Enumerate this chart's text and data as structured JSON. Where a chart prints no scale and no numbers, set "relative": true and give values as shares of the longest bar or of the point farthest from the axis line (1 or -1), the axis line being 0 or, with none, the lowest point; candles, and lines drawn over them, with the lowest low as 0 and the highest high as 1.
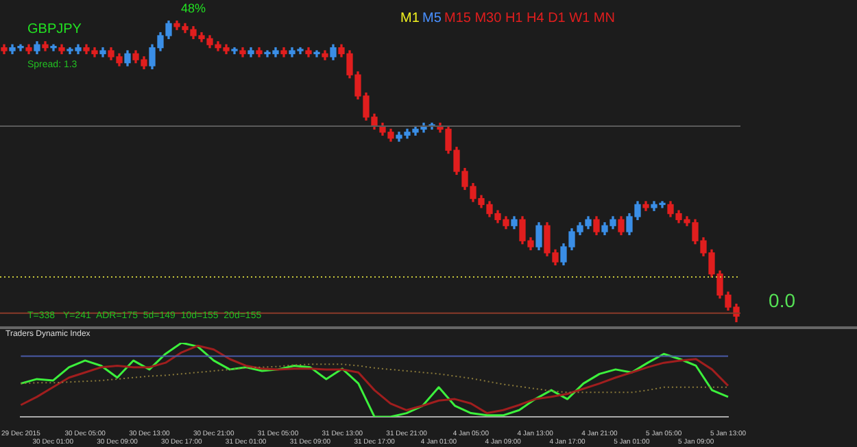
{
  "chart_data": [
    {
      "type": "candlestick",
      "relative": true,
      "tick_labels": false,
      "categories": [
        null,
        null,
        null,
        null,
        null,
        null,
        null,
        null,
        null,
        null,
        null,
        null,
        null,
        null,
        null,
        null,
        null,
        null,
        null,
        null,
        null,
        null,
        null,
        null,
        null,
        null,
        null,
        null,
        null,
        null,
        null,
        null,
        null,
        null,
        null,
        null,
        null,
        null,
        null,
        null,
        null,
        null,
        null,
        null,
        null,
        null,
        null,
        null,
        null,
        null,
        null,
        null,
        null,
        null,
        null,
        null,
        null,
        null,
        null,
        null,
        null,
        null,
        null,
        null,
        null,
        null,
        null,
        null,
        null,
        null,
        null,
        null,
        null,
        null,
        null,
        null,
        null,
        null,
        null,
        null,
        null,
        null,
        null,
        null,
        null,
        null,
        null,
        null,
        null,
        null
      ],
      "ohlc": [
        [
          0.91,
          0.92,
          0.89,
          0.9
        ],
        [
          0.9,
          0.92,
          0.89,
          0.91
        ],
        [
          0.91,
          0.92,
          0.9,
          0.91
        ],
        [
          0.91,
          0.92,
          0.89,
          0.9
        ],
        [
          0.9,
          0.93,
          0.89,
          0.92
        ],
        [
          0.92,
          0.93,
          0.9,
          0.91
        ],
        [
          0.91,
          0.92,
          0.9,
          0.91
        ],
        [
          0.91,
          0.92,
          0.89,
          0.9
        ],
        [
          0.9,
          0.91,
          0.89,
          0.9
        ],
        [
          0.9,
          0.92,
          0.89,
          0.91
        ],
        [
          0.91,
          0.92,
          0.89,
          0.9
        ],
        [
          0.9,
          0.91,
          0.88,
          0.89
        ],
        [
          0.89,
          0.91,
          0.88,
          0.9
        ],
        [
          0.9,
          0.91,
          0.87,
          0.88
        ],
        [
          0.88,
          0.89,
          0.85,
          0.86
        ],
        [
          0.86,
          0.9,
          0.85,
          0.89
        ],
        [
          0.89,
          0.9,
          0.86,
          0.87
        ],
        [
          0.87,
          0.88,
          0.84,
          0.85
        ],
        [
          0.85,
          0.92,
          0.84,
          0.91
        ],
        [
          0.91,
          0.96,
          0.9,
          0.95
        ],
        [
          0.95,
          1.0,
          0.94,
          0.99
        ],
        [
          0.99,
          1.0,
          0.97,
          0.98
        ],
        [
          0.98,
          0.99,
          0.96,
          0.97
        ],
        [
          0.97,
          0.98,
          0.94,
          0.95
        ],
        [
          0.95,
          0.96,
          0.93,
          0.94
        ],
        [
          0.94,
          0.95,
          0.91,
          0.92
        ],
        [
          0.92,
          0.93,
          0.9,
          0.91
        ],
        [
          0.91,
          0.92,
          0.89,
          0.9
        ],
        [
          0.9,
          0.91,
          0.89,
          0.9
        ],
        [
          0.9,
          0.91,
          0.88,
          0.89
        ],
        [
          0.89,
          0.91,
          0.88,
          0.9
        ],
        [
          0.9,
          0.91,
          0.88,
          0.89
        ],
        [
          0.89,
          0.9,
          0.88,
          0.89
        ],
        [
          0.89,
          0.91,
          0.88,
          0.9
        ],
        [
          0.9,
          0.91,
          0.88,
          0.89
        ],
        [
          0.89,
          0.91,
          0.88,
          0.9
        ],
        [
          0.9,
          0.91,
          0.89,
          0.9
        ],
        [
          0.9,
          0.91,
          0.88,
          0.89
        ],
        [
          0.89,
          0.9,
          0.88,
          0.89
        ],
        [
          0.89,
          0.9,
          0.87,
          0.88
        ],
        [
          0.88,
          0.92,
          0.87,
          0.91
        ],
        [
          0.91,
          0.92,
          0.88,
          0.89
        ],
        [
          0.89,
          0.9,
          0.81,
          0.82
        ],
        [
          0.82,
          0.83,
          0.74,
          0.75
        ],
        [
          0.75,
          0.76,
          0.67,
          0.68
        ],
        [
          0.68,
          0.69,
          0.64,
          0.65
        ],
        [
          0.65,
          0.66,
          0.62,
          0.63
        ],
        [
          0.63,
          0.64,
          0.6,
          0.61
        ],
        [
          0.61,
          0.63,
          0.6,
          0.62
        ],
        [
          0.62,
          0.64,
          0.61,
          0.63
        ],
        [
          0.63,
          0.65,
          0.62,
          0.64
        ],
        [
          0.64,
          0.66,
          0.63,
          0.65
        ],
        [
          0.65,
          0.66,
          0.64,
          0.65
        ],
        [
          0.65,
          0.66,
          0.63,
          0.64
        ],
        [
          0.64,
          0.65,
          0.56,
          0.57
        ],
        [
          0.57,
          0.58,
          0.49,
          0.5
        ],
        [
          0.5,
          0.51,
          0.44,
          0.45
        ],
        [
          0.45,
          0.46,
          0.4,
          0.41
        ],
        [
          0.41,
          0.42,
          0.38,
          0.39
        ],
        [
          0.39,
          0.4,
          0.35,
          0.36
        ],
        [
          0.36,
          0.37,
          0.33,
          0.34
        ],
        [
          0.34,
          0.35,
          0.31,
          0.32
        ],
        [
          0.32,
          0.35,
          0.31,
          0.34
        ],
        [
          0.34,
          0.35,
          0.26,
          0.27
        ],
        [
          0.27,
          0.28,
          0.24,
          0.25
        ],
        [
          0.25,
          0.33,
          0.24,
          0.32
        ],
        [
          0.32,
          0.33,
          0.22,
          0.23
        ],
        [
          0.23,
          0.24,
          0.19,
          0.2
        ],
        [
          0.2,
          0.26,
          0.19,
          0.25
        ],
        [
          0.25,
          0.31,
          0.24,
          0.3
        ],
        [
          0.3,
          0.33,
          0.29,
          0.32
        ],
        [
          0.32,
          0.35,
          0.31,
          0.34
        ],
        [
          0.34,
          0.35,
          0.29,
          0.3
        ],
        [
          0.3,
          0.33,
          0.29,
          0.32
        ],
        [
          0.32,
          0.35,
          0.31,
          0.34
        ],
        [
          0.34,
          0.35,
          0.29,
          0.3
        ],
        [
          0.3,
          0.36,
          0.29,
          0.35
        ],
        [
          0.35,
          0.4,
          0.34,
          0.39
        ],
        [
          0.39,
          0.4,
          0.37,
          0.38
        ],
        [
          0.38,
          0.4,
          0.37,
          0.39
        ],
        [
          0.39,
          0.4,
          0.38,
          0.39
        ],
        [
          0.39,
          0.4,
          0.35,
          0.36
        ],
        [
          0.36,
          0.37,
          0.33,
          0.34
        ],
        [
          0.34,
          0.35,
          0.32,
          0.33
        ],
        [
          0.33,
          0.34,
          0.26,
          0.27
        ],
        [
          0.27,
          0.28,
          0.22,
          0.23
        ],
        [
          0.23,
          0.24,
          0.15,
          0.16
        ],
        [
          0.16,
          0.17,
          0.08,
          0.09
        ],
        [
          0.09,
          0.1,
          0.04,
          0.05
        ],
        [
          0.05,
          0.06,
          0.0,
          0.02
        ]
      ],
      "colors": [
        "#e01e1e",
        "#3a8ee6",
        "#3a8ee6",
        "#e01e1e",
        "#3a8ee6",
        "#e01e1e",
        "#3a8ee6",
        "#e01e1e",
        "#3a8ee6",
        "#3a8ee6",
        "#e01e1e",
        "#e01e1e",
        "#3a8ee6",
        "#e01e1e",
        "#e01e1e",
        "#3a8ee6",
        "#e01e1e",
        "#e01e1e",
        "#3a8ee6",
        "#3a8ee6",
        "#3a8ee6",
        "#e01e1e",
        "#e01e1e",
        "#e01e1e",
        "#e01e1e",
        "#e01e1e",
        "#e01e1e",
        "#e01e1e",
        "#3a8ee6",
        "#e01e1e",
        "#3a8ee6",
        "#e01e1e",
        "#3a8ee6",
        "#3a8ee6",
        "#e01e1e",
        "#3a8ee6",
        "#3a8ee6",
        "#e01e1e",
        "#3a8ee6",
        "#e01e1e",
        "#3a8ee6",
        "#e01e1e",
        "#e01e1e",
        "#e01e1e",
        "#e01e1e",
        "#e01e1e",
        "#e01e1e",
        "#e01e1e",
        "#3a8ee6",
        "#3a8ee6",
        "#3a8ee6",
        "#3a8ee6",
        "#3a8ee6",
        "#e01e1e",
        "#e01e1e",
        "#e01e1e",
        "#e01e1e",
        "#e01e1e",
        "#e01e1e",
        "#e01e1e",
        "#e01e1e",
        "#e01e1e",
        "#3a8ee6",
        "#e01e1e",
        "#e01e1e",
        "#3a8ee6",
        "#e01e1e",
        "#e01e1e",
        "#3a8ee6",
        "#3a8ee6",
        "#3a8ee6",
        "#3a8ee6",
        "#e01e1e",
        "#3a8ee6",
        "#3a8ee6",
        "#e01e1e",
        "#3a8ee6",
        "#3a8ee6",
        "#e01e1e",
        "#3a8ee6",
        "#3a8ee6",
        "#e01e1e",
        "#e01e1e",
        "#e01e1e",
        "#e01e1e",
        "#e01e1e",
        "#e01e1e",
        "#e01e1e",
        "#e01e1e",
        "#e01e1e"
      ],
      "ref_lines": [
        {
          "axis": "y",
          "value": 0.65,
          "color": "#5a5a5a"
        },
        {
          "axis": "y",
          "value": 0.15,
          "color": "#c8c83c",
          "line_style": "dotted"
        },
        {
          "axis": "y",
          "value": 0.03,
          "color": "#8a3a2a"
        }
      ],
      "annotations": [
        "GBPJPY",
        "Spread: 1.3",
        "48%",
        "M1",
        "M5",
        "M15 M30 H1 H4 D1 W1 MN",
        "0.0",
        "T=338",
        "Y=241  ADR=175  5d=149  10d=155  20d=155"
      ]
    },
    {
      "type": "line",
      "relative": true,
      "tick_labels": "x",
      "title": "Traders Dynamic Index",
      "categories": [
        "29 Dec 2015",
        null,
        "30 Dec 01:00",
        null,
        "30 Dec 05:00",
        null,
        "30 Dec 09:00",
        null,
        "30 Dec 13:00",
        null,
        "30 Dec 17:00",
        null,
        "30 Dec 21:00",
        null,
        "31 Dec 01:00",
        null,
        "31 Dec 05:00",
        null,
        "31 Dec 09:00",
        null,
        "31 Dec 13:00",
        null,
        "31 Dec 17:00",
        null,
        "31 Dec 21:00",
        null,
        "4 Jan 01:00",
        null,
        "4 Jan 05:00",
        null,
        "4 Jan 09:00",
        null,
        "4 Jan 13:00",
        null,
        "4 Jan 17:00",
        null,
        "4 Jan 21:00",
        null,
        "5 Jan 01:00",
        null,
        "5 Jan 05:00",
        null,
        "5 Jan 09:00",
        null,
        "5 Jan 13:00"
      ],
      "series": [
        {
          "color": "#8a7a3a",
          "line_style": "dotted",
          "values": [
            0.45,
            0.46,
            0.46,
            0.47,
            0.48,
            0.49,
            0.51,
            0.53,
            0.55,
            0.56,
            0.58,
            0.6,
            0.62,
            0.64,
            0.66,
            0.67,
            0.68,
            0.7,
            0.71,
            0.71,
            0.71,
            0.69,
            0.66,
            0.64,
            0.62,
            0.6,
            0.58,
            0.55,
            0.52,
            0.48,
            0.44,
            0.41,
            0.38,
            0.35,
            0.33,
            0.33,
            0.33,
            0.33,
            0.33,
            0.36,
            0.4,
            0.4,
            0.4,
            0.4,
            0.4
          ]
        },
        {
          "color": "#a01e1e",
          "values": [
            0.16,
            0.27,
            0.4,
            0.53,
            0.6,
            0.67,
            0.69,
            0.67,
            0.67,
            0.73,
            0.87,
            0.96,
            0.91,
            0.78,
            0.69,
            0.65,
            0.64,
            0.65,
            0.65,
            0.64,
            0.64,
            0.6,
            0.36,
            0.18,
            0.09,
            0.15,
            0.22,
            0.24,
            0.18,
            0.05,
            0.09,
            0.16,
            0.24,
            0.27,
            0.31,
            0.38,
            0.45,
            0.53,
            0.6,
            0.67,
            0.73,
            0.76,
            0.78,
            0.64,
            0.42
          ]
        },
        {
          "color": "#3cf03c",
          "values": [
            0.45,
            0.51,
            0.49,
            0.67,
            0.76,
            0.69,
            0.53,
            0.76,
            0.64,
            0.85,
            1,
            0.95,
            0.76,
            0.64,
            0.67,
            0.62,
            0.64,
            0.69,
            0.67,
            0.51,
            0.65,
            0.45,
            0,
            0,
            0.05,
            0.15,
            0.4,
            0.15,
            0.05,
            0.02,
            0.02,
            0.09,
            0.24,
            0.36,
            0.24,
            0.45,
            0.58,
            0.64,
            0.6,
            0.73,
            0.85,
            0.78,
            0.69,
            0.36,
            0.27
          ]
        }
      ],
      "ref_lines": [
        {
          "axis": "y",
          "value": 0.82,
          "color": "#4a5aa8"
        }
      ]
    }
  ]
}
